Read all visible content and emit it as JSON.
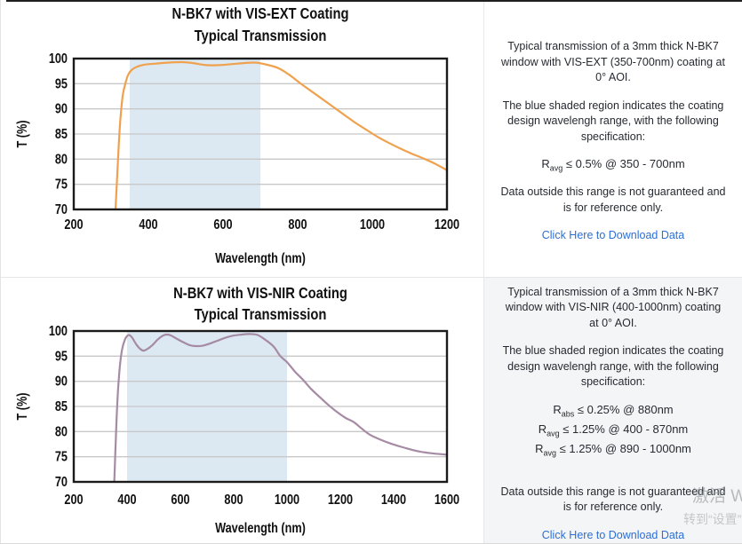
{
  "colors": {
    "band": "#dde9f2",
    "grid": "#c8c8c8",
    "axis": "#1b1b1b",
    "text": "#262a31",
    "link_blue": "#2c6fd6",
    "vis_ext_curve": "#efa14e",
    "vis_nir_curve": "#a58ba4"
  },
  "chart_data": [
    {
      "type": "line",
      "title_line1": "N-BK7 with VIS-EXT Coating",
      "title_line2": "Typical Transmission",
      "xlabel": "Wavelength (nm)",
      "ylabel": "T (%)",
      "xlim": [
        200,
        1200
      ],
      "ylim": [
        70,
        100
      ],
      "xticks": [
        200,
        400,
        600,
        800,
        1000,
        1200
      ],
      "yticks": [
        70,
        75,
        80,
        85,
        90,
        95,
        100
      ],
      "design_band_nm": [
        350,
        700
      ],
      "grid": "horizontal",
      "series_name": "VIS-EXT coated N-BK7 transmission",
      "color": "#efa14e",
      "x": [
        312,
        316,
        320,
        325,
        331,
        338,
        346,
        356,
        370,
        390,
        420,
        455,
        490,
        520,
        555,
        590,
        625,
        655,
        685,
        705,
        745,
        775,
        805,
        835,
        865,
        895,
        925,
        955,
        985,
        1015,
        1045,
        1075,
        1105,
        1135,
        1165,
        1200
      ],
      "y": [
        70,
        76,
        82,
        88,
        92.5,
        95,
        96.8,
        97.8,
        98.4,
        98.8,
        99.0,
        99.2,
        99.3,
        99.1,
        98.7,
        98.7,
        98.9,
        99.1,
        99.2,
        99.0,
        98.2,
        96.9,
        95.2,
        93.6,
        92.0,
        90.4,
        88.8,
        87.2,
        85.8,
        84.4,
        83.2,
        82.1,
        81.1,
        80.2,
        79.2,
        77.8
      ]
    },
    {
      "type": "line",
      "title_line1": "N-BK7 with VIS-NIR Coating",
      "title_line2": "Typical Transmission",
      "xlabel": "Wavelength (nm)",
      "ylabel": "T (%)",
      "xlim": [
        200,
        1600
      ],
      "ylim": [
        70,
        100
      ],
      "xticks": [
        200,
        400,
        600,
        800,
        1000,
        1200,
        1400,
        1600
      ],
      "yticks": [
        70,
        75,
        80,
        85,
        90,
        95,
        100
      ],
      "design_band_nm": [
        400,
        1000
      ],
      "grid": "horizontal",
      "series_name": "VIS-NIR coated N-BK7 transmission",
      "color": "#a58ba4",
      "x": [
        352,
        356,
        361,
        367,
        374,
        382,
        392,
        400,
        408,
        420,
        435,
        450,
        462,
        475,
        495,
        515,
        535,
        550,
        565,
        585,
        610,
        635,
        660,
        685,
        710,
        740,
        770,
        800,
        830,
        860,
        890,
        920,
        950,
        975,
        1000,
        1030,
        1060,
        1090,
        1120,
        1155,
        1190,
        1220,
        1250,
        1280,
        1310,
        1350,
        1390,
        1440,
        1490,
        1540,
        1600
      ],
      "y": [
        70,
        76,
        83,
        89,
        93.5,
        96.5,
        98.3,
        99.0,
        99.2,
        98.6,
        97.3,
        96.4,
        96.1,
        96.4,
        97.2,
        98.3,
        99.1,
        99.3,
        99.1,
        98.5,
        97.8,
        97.2,
        97.0,
        97.1,
        97.5,
        98.1,
        98.7,
        99.1,
        99.3,
        99.4,
        99.2,
        98.2,
        96.9,
        95.0,
        93.8,
        91.9,
        90.3,
        88.5,
        87.0,
        85.3,
        83.8,
        82.7,
        81.9,
        80.6,
        79.4,
        78.4,
        77.6,
        76.8,
        76.1,
        75.7,
        75.4
      ]
    }
  ],
  "panels": [
    {
      "para1": "Typical transmission of a 3mm thick N-BK7 window with VIS-EXT (350-700nm) coating at 0° AOI.",
      "para2": "The blue shaded region indicates the coating design wavelengh range, with the following specification:",
      "specs": [
        {
          "prefix": "R",
          "sub": "avg",
          "rest": " ≤ 0.5% @ 350 - 700nm"
        }
      ],
      "para3": "Data outside this range is not guaranteed and is for reference only.",
      "link": "Click Here to Download Data"
    },
    {
      "para1": "Typical transmission of a 3mm thick N-BK7 window with VIS-NIR (400-1000nm) coating at 0° AOI.",
      "para2": "The blue shaded region indicates the coating design wavelengh range, with the following specification:",
      "specs": [
        {
          "prefix": "R",
          "sub": "abs",
          "rest": " ≤ 0.25% @ 880nm"
        },
        {
          "prefix": "R",
          "sub": "avg",
          "rest": " ≤ 1.25% @ 400 - 870nm"
        },
        {
          "prefix": "R",
          "sub": "avg",
          "rest": " ≤ 1.25% @ 890 - 1000nm"
        }
      ],
      "para3": "Data outside this range is not guaranteed and is for reference only.",
      "link": "Click Here to Download Data"
    }
  ],
  "watermark": {
    "line1": "激活 W",
    "line2": "转到“设置”"
  }
}
